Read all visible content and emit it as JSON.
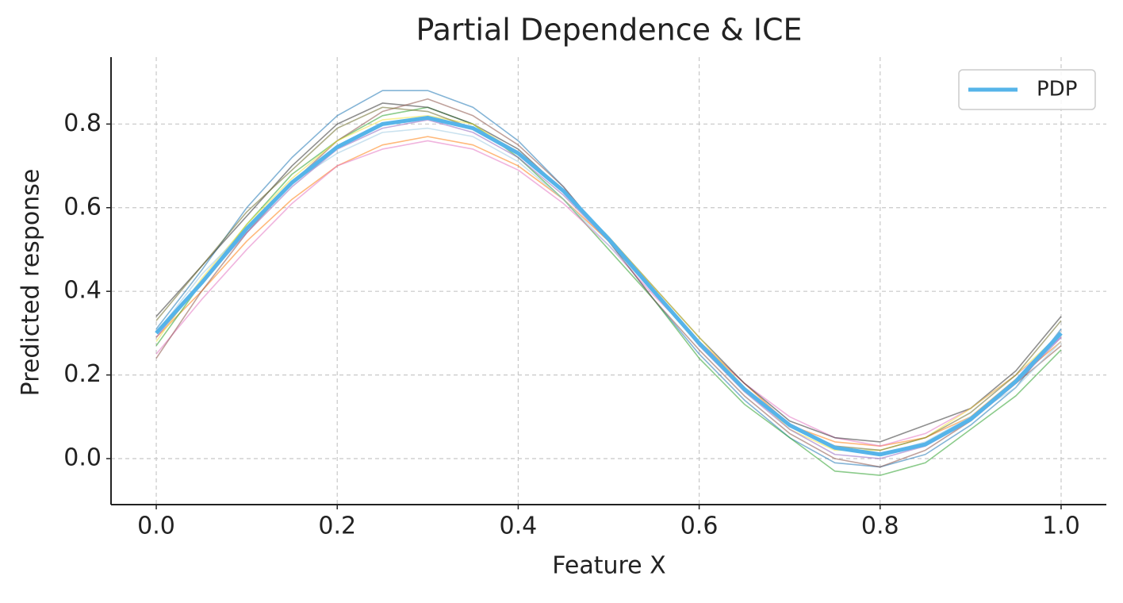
{
  "chart_data": {
    "type": "line",
    "title": "Partial Dependence & ICE",
    "x_label": "Feature X",
    "y_label": "Predicted response",
    "x": [
      0,
      0.05,
      0.1,
      0.15,
      0.2,
      0.25,
      0.3,
      0.35,
      0.4,
      0.45,
      0.5,
      0.55,
      0.6,
      0.65,
      0.7,
      0.75,
      0.8,
      0.85,
      0.9,
      0.95,
      1
    ],
    "series": [
      {
        "name": "PDP",
        "color": "#56b4e9",
        "values": [
          0.3,
          0.42,
          0.55,
          0.66,
          0.745,
          0.8,
          0.815,
          0.79,
          0.73,
          0.64,
          0.525,
          0.4,
          0.276,
          0.166,
          0.08,
          0.026,
          0.01,
          0.034,
          0.094,
          0.185,
          0.3
        ]
      }
    ],
    "ice_lines": [
      {
        "color": "#1f77b4",
        "values": [
          0.31,
          0.45,
          0.6,
          0.72,
          0.82,
          0.88,
          0.88,
          0.84,
          0.76,
          0.65,
          0.52,
          0.38,
          0.25,
          0.14,
          0.05,
          -0.01,
          -0.02,
          0.01,
          0.08,
          0.17,
          0.31
        ]
      },
      {
        "color": "#ff7f0e",
        "values": [
          0.29,
          0.4,
          0.52,
          0.62,
          0.7,
          0.75,
          0.77,
          0.75,
          0.7,
          0.62,
          0.52,
          0.4,
          0.28,
          0.18,
          0.08,
          0.04,
          0.03,
          0.05,
          0.1,
          0.19,
          0.28
        ]
      },
      {
        "color": "#2ca02c",
        "values": [
          0.27,
          0.42,
          0.56,
          0.68,
          0.76,
          0.82,
          0.84,
          0.8,
          0.72,
          0.62,
          0.5,
          0.38,
          0.24,
          0.13,
          0.05,
          -0.03,
          -0.04,
          -0.01,
          0.07,
          0.15,
          0.26
        ]
      },
      {
        "color": "#e377c2",
        "values": [
          0.25,
          0.38,
          0.5,
          0.61,
          0.7,
          0.74,
          0.76,
          0.74,
          0.69,
          0.61,
          0.51,
          0.39,
          0.28,
          0.18,
          0.1,
          0.05,
          0.03,
          0.06,
          0.12,
          0.2,
          0.29
        ]
      },
      {
        "color": "#333333",
        "values": [
          0.34,
          0.46,
          0.58,
          0.7,
          0.8,
          0.85,
          0.84,
          0.8,
          0.74,
          0.64,
          0.53,
          0.41,
          0.29,
          0.18,
          0.09,
          0.05,
          0.04,
          0.08,
          0.12,
          0.21,
          0.34
        ]
      },
      {
        "color": "#8c564b",
        "values": [
          0.24,
          0.4,
          0.54,
          0.66,
          0.76,
          0.83,
          0.86,
          0.82,
          0.75,
          0.65,
          0.52,
          0.38,
          0.26,
          0.15,
          0.06,
          0.0,
          -0.02,
          0.02,
          0.09,
          0.18,
          0.27
        ]
      },
      {
        "color": "#f0e442",
        "values": [
          0.28,
          0.43,
          0.56,
          0.67,
          0.76,
          0.81,
          0.82,
          0.8,
          0.73,
          0.64,
          0.53,
          0.41,
          0.29,
          0.17,
          0.07,
          0.02,
          0.02,
          0.05,
          0.12,
          0.2,
          0.3
        ]
      },
      {
        "color": "#9ecae1",
        "values": [
          0.3,
          0.44,
          0.55,
          0.66,
          0.73,
          0.78,
          0.79,
          0.77,
          0.71,
          0.62,
          0.51,
          0.4,
          0.28,
          0.17,
          0.08,
          0.03,
          0.01,
          0.04,
          0.1,
          0.17,
          0.28
        ]
      },
      {
        "color": "#9467bd",
        "values": [
          0.29,
          0.42,
          0.54,
          0.65,
          0.74,
          0.79,
          0.81,
          0.78,
          0.72,
          0.63,
          0.52,
          0.4,
          0.27,
          0.16,
          0.07,
          0.01,
          0.0,
          0.03,
          0.09,
          0.18,
          0.29
        ]
      },
      {
        "color": "#6b6b2a",
        "values": [
          0.33,
          0.46,
          0.59,
          0.69,
          0.79,
          0.84,
          0.83,
          0.79,
          0.73,
          0.64,
          0.52,
          0.4,
          0.28,
          0.17,
          0.08,
          0.03,
          0.02,
          0.05,
          0.11,
          0.2,
          0.33
        ]
      }
    ],
    "xlim": [
      -0.05,
      1.05
    ],
    "ylim": [
      -0.11,
      0.96
    ],
    "xticks": [
      {
        "value": 0,
        "label": "0.0"
      },
      0.2,
      0.4,
      0.6,
      0.8,
      {
        "value": 1,
        "label": "1.0"
      }
    ],
    "yticks": [
      {
        "value": 0,
        "label": "0.0"
      },
      0.2,
      0.4,
      0.6,
      0.8
    ],
    "grid": true,
    "legend": "upper right"
  }
}
